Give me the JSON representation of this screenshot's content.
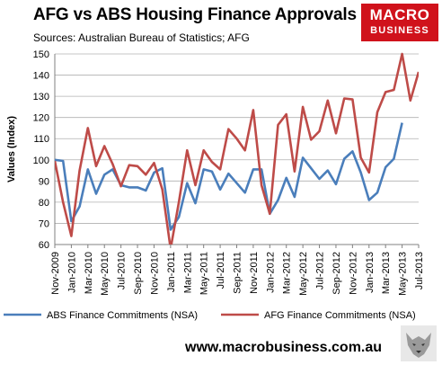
{
  "header": {
    "title": "AFG vs ABS Housing Finance Approvals",
    "subtitle": "Sources: Australian Bureau of Statistics; AFG"
  },
  "logo": {
    "line1": "MACRO",
    "line2": "BUSINESS",
    "color": "#d0121b"
  },
  "footer": {
    "url": "www.macrobusiness.com.au"
  },
  "colors": {
    "abs": "#4a7ebb",
    "afg": "#be4b48",
    "grid": "#b0b0b0"
  },
  "chart_data": {
    "type": "line",
    "title": "AFG vs ABS Housing Finance Approvals",
    "ylabel": "Values (Index)",
    "xlabel": "",
    "ylim": [
      60,
      150
    ],
    "yticks": [
      60,
      70,
      80,
      90,
      100,
      110,
      120,
      130,
      140,
      150
    ],
    "grid": true,
    "legend_position": "bottom",
    "x": [
      "Nov-2009",
      "Dec-2009",
      "Jan-2010",
      "Feb-2010",
      "Mar-2010",
      "Apr-2010",
      "May-2010",
      "Jun-2010",
      "Jul-2010",
      "Aug-2010",
      "Sep-2010",
      "Oct-2010",
      "Nov-2010",
      "Dec-2010",
      "Jan-2011",
      "Feb-2011",
      "Mar-2011",
      "Apr-2011",
      "May-2011",
      "Jun-2011",
      "Jul-2011",
      "Aug-2011",
      "Sep-2011",
      "Oct-2011",
      "Nov-2011",
      "Dec-2011",
      "Jan-2012",
      "Feb-2012",
      "Mar-2012",
      "Apr-2012",
      "May-2012",
      "Jun-2012",
      "Jul-2012",
      "Aug-2012",
      "Sep-2012",
      "Oct-2012",
      "Nov-2012",
      "Dec-2012",
      "Jan-2013",
      "Feb-2013",
      "Mar-2013",
      "Apr-2013",
      "May-2013",
      "Jun-2013",
      "Jul-2013"
    ],
    "tick_labels": [
      "Nov-2009",
      "Jan-2010",
      "Mar-2010",
      "May-2010",
      "Jul-2010",
      "Sep-2010",
      "Nov-2010",
      "Jan-2011",
      "Mar-2011",
      "May-2011",
      "Jul-2011",
      "Sep-2011",
      "Nov-2011",
      "Jan-2012",
      "Mar-2012",
      "May-2012",
      "Jul-2012",
      "Sep-2012",
      "Nov-2012",
      "Jan-2013",
      "Mar-2013",
      "May-2013",
      "Jul-2013"
    ],
    "series": [
      {
        "name": "ABS Finance Commitments (NSA)",
        "color": "#4a7ebb",
        "values": [
          100,
          99.5,
          71,
          78,
          95.5,
          84,
          93,
          95.5,
          88,
          87,
          87,
          85.5,
          94,
          96,
          67,
          73,
          89,
          79.5,
          95.5,
          94.5,
          86,
          93.5,
          89,
          84.5,
          95.5,
          95.5,
          74.5,
          81,
          91.5,
          82.5,
          101,
          96,
          91,
          95,
          88.5,
          100.5,
          104,
          94,
          81,
          84.5,
          96.5,
          100.5,
          117.5,
          null,
          null
        ]
      },
      {
        "name": "AFG Finance Commitments (NSA)",
        "color": "#be4b48",
        "values": [
          99.5,
          80,
          64,
          95,
          115,
          97,
          106.5,
          98,
          87.5,
          97.5,
          97,
          93,
          98.5,
          86,
          58,
          80,
          104.5,
          88,
          104.5,
          99,
          95.5,
          114.5,
          110,
          104.5,
          123.5,
          88,
          74.5,
          116.5,
          121.5,
          94.5,
          125,
          109.5,
          113.5,
          128,
          112.5,
          129,
          128.5,
          101,
          94,
          122.5,
          132,
          133,
          150,
          128,
          141.5
        ]
      }
    ]
  }
}
